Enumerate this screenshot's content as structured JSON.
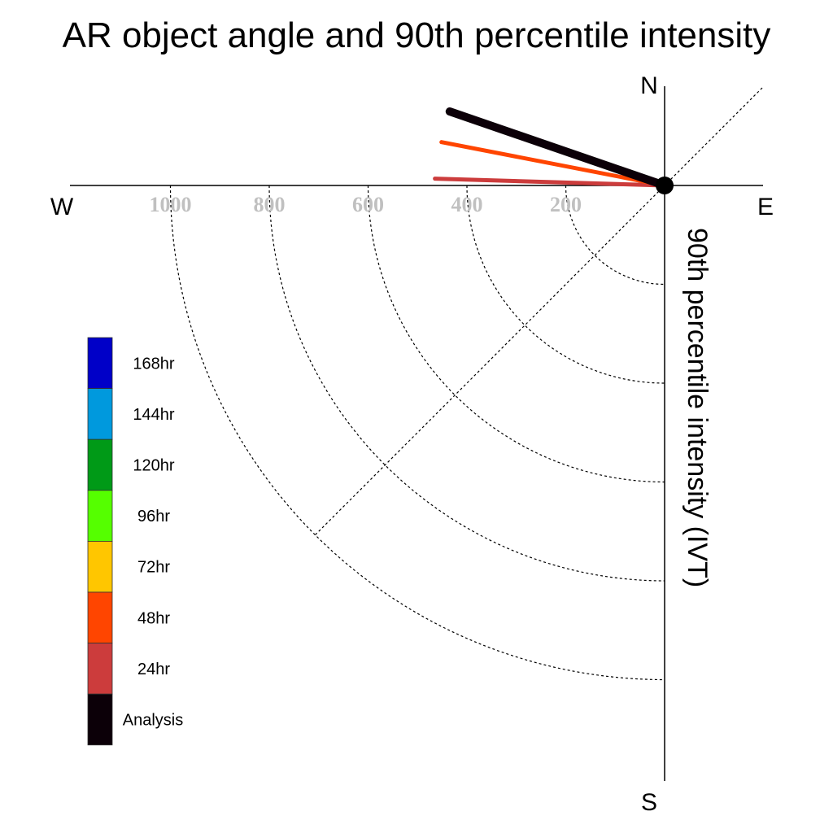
{
  "chart_data": {
    "type": "polar-quadrant",
    "title": "AR object angle and 90th percentile intensity",
    "ylabel": "90th percentile intensity (IVT)",
    "compass": {
      "north": "N",
      "south": "S",
      "east": "E",
      "west": "W"
    },
    "radial_ticks": [
      200,
      400,
      600,
      800,
      1000
    ],
    "radial_tick_labels": [
      "200",
      "400",
      "600",
      "800",
      "1000"
    ],
    "rmax": 1200,
    "series": [
      {
        "name": "24hr",
        "intensity": 465,
        "angle_deg_above_west": 1.7,
        "color": "#cc3c3c"
      },
      {
        "name": "48hr",
        "intensity": 460,
        "angle_deg_above_west": 11,
        "color": "#ff4500"
      },
      {
        "name": "Analysis",
        "intensity": 460,
        "angle_deg_above_west": 19,
        "color": "#0c0008"
      }
    ],
    "legend": [
      {
        "label": "168hr",
        "color": "#0000c8"
      },
      {
        "label": "144hr",
        "color": "#0099dd"
      },
      {
        "label": "120hr",
        "color": "#009a17"
      },
      {
        "label": "96hr",
        "color": "#55ff00"
      },
      {
        "label": "72hr",
        "color": "#ffc600"
      },
      {
        "label": "48hr",
        "color": "#ff4500"
      },
      {
        "label": "24hr",
        "color": "#cc3c3c"
      },
      {
        "label": "Analysis",
        "color": "#0c0008"
      }
    ]
  }
}
